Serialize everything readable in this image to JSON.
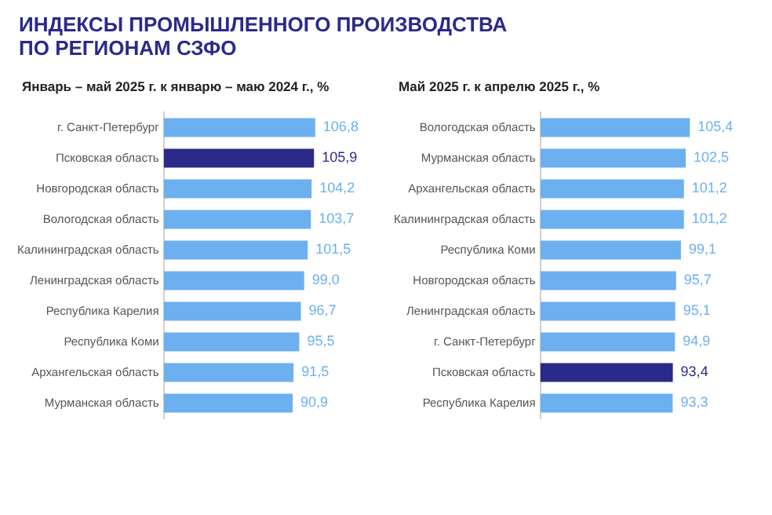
{
  "chart_data": [
    {
      "type": "bar",
      "orientation": "horizontal",
      "title": "ИНДЕКСЫ ПРОМЫШЛЕННОГО ПРОИЗВОДСТВА ПО РЕГИОНАМ СЗФО",
      "subtitle": "Январь – май 2025 г. к январю – маю 2024 г., %",
      "categories": [
        "г. Санкт-Петербург",
        "Псковская область",
        "Новгородская область",
        "Вологодская область",
        "Калининградская область",
        "Ленинградская область",
        "Республика Карелия",
        "Республика Коми",
        "Архангельская область",
        "Мурманская область"
      ],
      "values": [
        106.8,
        105.9,
        104.2,
        103.7,
        101.5,
        99.0,
        96.7,
        95.5,
        91.5,
        90.9
      ],
      "colors": [
        "#6cb0f0",
        "#2b2a8a",
        "#6cb0f0",
        "#6cb0f0",
        "#6cb0f0",
        "#6cb0f0",
        "#6cb0f0",
        "#6cb0f0",
        "#6cb0f0",
        "#6cb0f0"
      ],
      "value_labels": [
        "106,8",
        "105,9",
        "104,2",
        "103,7",
        "101,5",
        "99,0",
        "96,7",
        "95,5",
        "91,5",
        "90,9"
      ],
      "grid": false,
      "legend": false,
      "tick_labels": "y"
    },
    {
      "type": "bar",
      "orientation": "horizontal",
      "subtitle": "Май 2025 г. к апрелю 2025 г., %",
      "categories": [
        "Вологодская область",
        "Мурманская область",
        "Архангельская область",
        "Калининградская область",
        "Республика Коми",
        "Новгородская область",
        "Ленинградская область",
        "г. Санкт-Петербург",
        "Псковская область",
        "Республика Карелия"
      ],
      "values": [
        105.4,
        102.5,
        101.2,
        101.2,
        99.1,
        95.7,
        95.1,
        94.9,
        93.4,
        93.3
      ],
      "colors": [
        "#6cb0f0",
        "#6cb0f0",
        "#6cb0f0",
        "#6cb0f0",
        "#6cb0f0",
        "#6cb0f0",
        "#6cb0f0",
        "#6cb0f0",
        "#2b2a8a",
        "#6cb0f0"
      ],
      "value_labels": [
        "105,4",
        "102,5",
        "101,2",
        "101,2",
        "99,1",
        "95,7",
        "95,1",
        "94,9",
        "93,4",
        "93,3"
      ],
      "grid": false,
      "legend": false,
      "tick_labels": "y"
    }
  ]
}
